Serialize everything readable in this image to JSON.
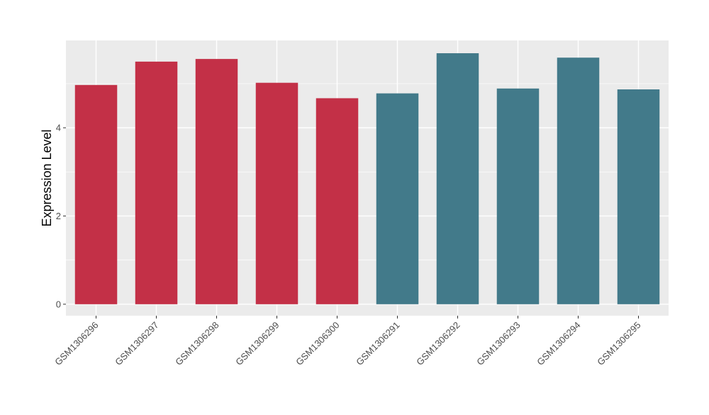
{
  "chart_data": {
    "type": "bar",
    "title": "",
    "xlabel": "",
    "ylabel": "Expression Level",
    "categories": [
      "GSM1306296",
      "GSM1306297",
      "GSM1306298",
      "GSM1306299",
      "GSM1306300",
      "GSM1306291",
      "GSM1306292",
      "GSM1306293",
      "GSM1306294",
      "GSM1306295"
    ],
    "values": [
      4.97,
      5.5,
      5.56,
      5.02,
      4.67,
      4.78,
      5.69,
      4.89,
      5.59,
      4.87
    ],
    "groups": [
      0,
      0,
      0,
      0,
      0,
      1,
      1,
      1,
      1,
      1
    ],
    "group_colors": [
      "#c33047",
      "#427a8a"
    ],
    "y_ticks": [
      0,
      2,
      4
    ],
    "ylim": [
      -0.26,
      5.98
    ],
    "panel_background": "#ebebeb",
    "grid_color": "#ffffff",
    "grid": true,
    "legend": "none"
  }
}
